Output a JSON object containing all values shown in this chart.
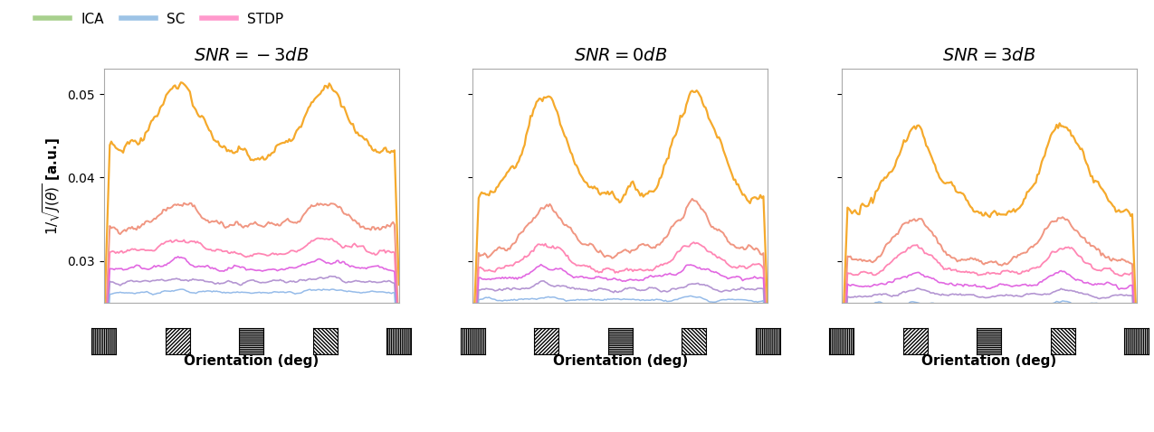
{
  "titles": [
    "$SNR = -3dB$",
    "$SNR = 0dB$",
    "$SNR = 3dB$"
  ],
  "ylabel": "$1/\\sqrt{J(\\theta)}$ [a.u.]",
  "xlabel": "Orientation (deg)",
  "ylim": [
    0.025,
    0.053
  ],
  "yticks": [
    0.03,
    0.04,
    0.05
  ],
  "n_points": 200,
  "legend_labels": [
    "ICA",
    "SC",
    "STDP"
  ],
  "legend_colors": [
    "#a8d08d",
    "#9dc3e6",
    "#ff99cc"
  ],
  "line_colors": [
    "#f5a520",
    "#f0907a",
    "#ff80b0",
    "#e060e0",
    "#b090d0",
    "#90b8e8",
    "#6090d0"
  ],
  "plot_bg": "#ffffff",
  "spine_color": "#aaaaaa",
  "title_fontsize": 14,
  "axis_fontsize": 11,
  "tick_fontsize": 10
}
